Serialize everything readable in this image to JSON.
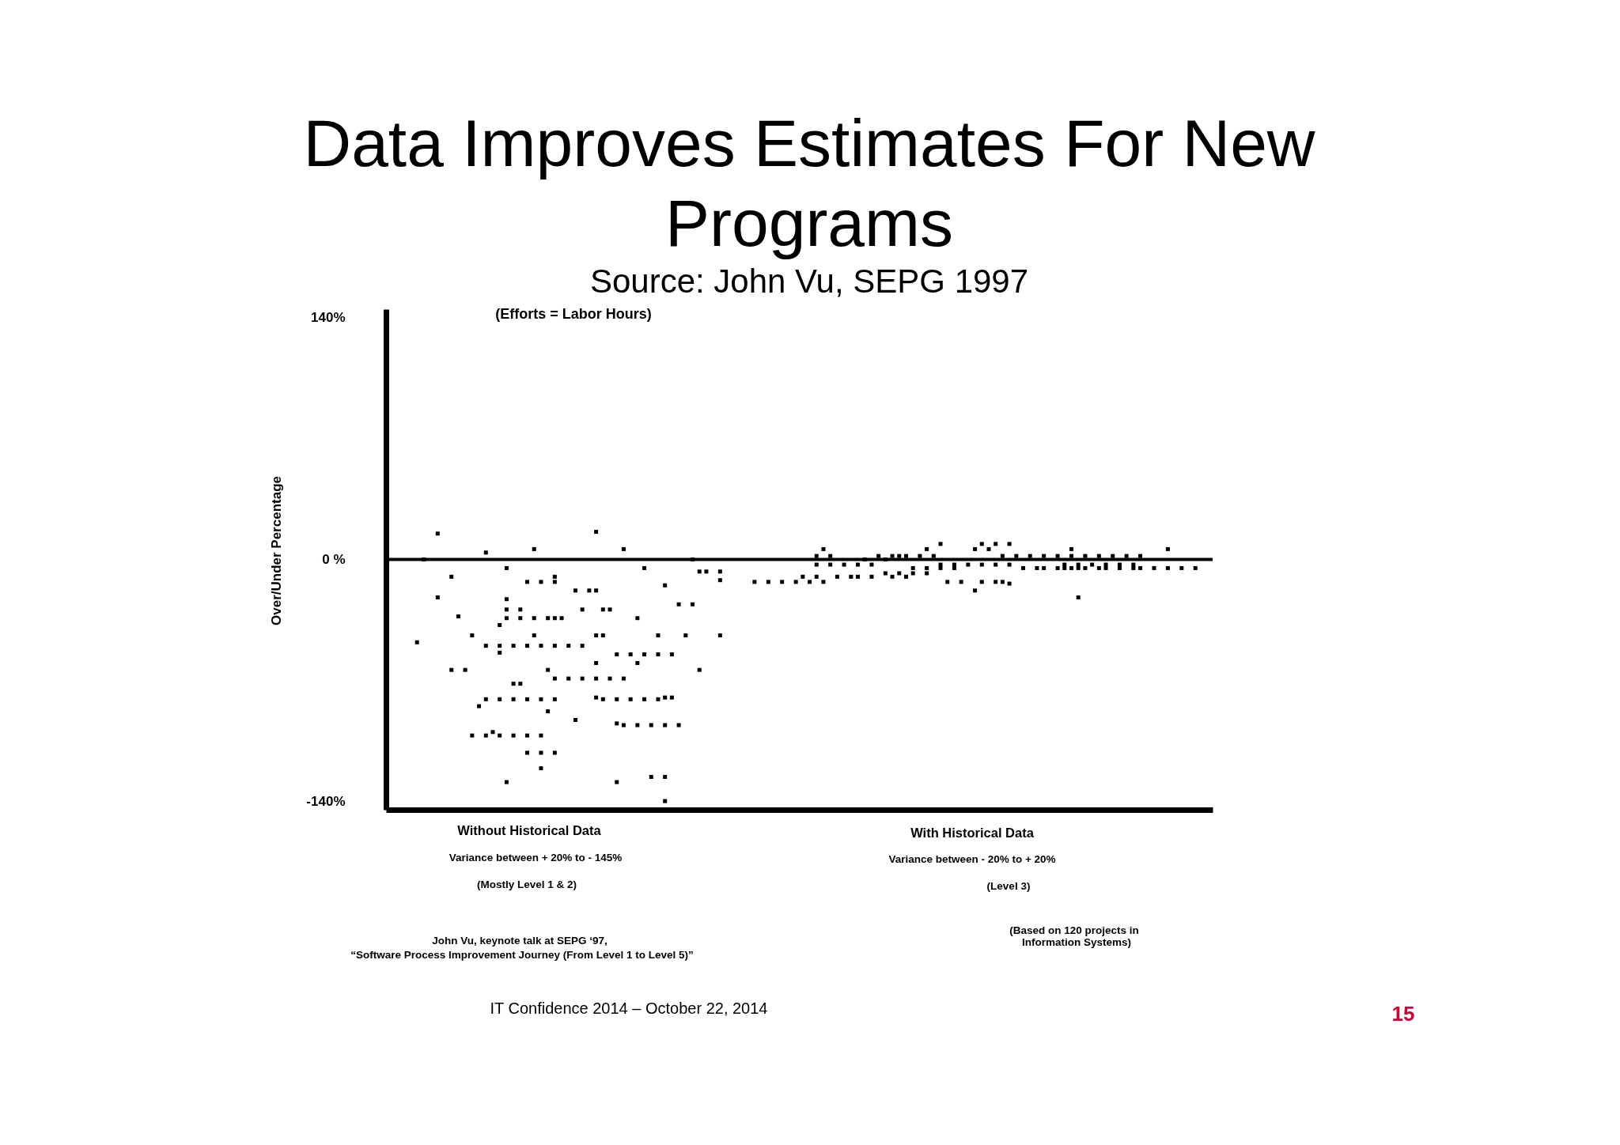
{
  "chart_data": {
    "type": "scatter",
    "title": "Data Improves Estimates For New Programs",
    "subtitle": "Source: John Vu, SEPG 1997",
    "ylabel": "Over/Under Percentage",
    "annotations": [
      "(Efforts = Labor Hours)",
      "Without Historical Data",
      "Variance between + 20% to - 145%",
      "(Mostly Level 1 & 2)",
      "With Historical Data",
      "Variance between - 20% to + 20%",
      "(Level 3)",
      "John Vu, keynote talk at SEPG ‘97,",
      "“Software Process Improvement Journey (From Level 1 to Level 5)”",
      "(Based on 120 projects in",
      "Information Systems)",
      "IT Confidence 2014 – October 22, 2014",
      "15"
    ],
    "categories": [
      null,
      null,
      null,
      null,
      null,
      null,
      null,
      null,
      null,
      null,
      null,
      null,
      null,
      null,
      null,
      null,
      null,
      null,
      null,
      null,
      null,
      null,
      null,
      null,
      null,
      null,
      null,
      null,
      null,
      null,
      null,
      null,
      null,
      null,
      null,
      null,
      null,
      null,
      null,
      null,
      null,
      null,
      null,
      null,
      null,
      null,
      null,
      null,
      null,
      null,
      null,
      null,
      null,
      null,
      null,
      null,
      null,
      null,
      null,
      null,
      null,
      null,
      null,
      null,
      null,
      null,
      null,
      null,
      null,
      null,
      null,
      null,
      null,
      null,
      null,
      null,
      null,
      null,
      null,
      null,
      null,
      null,
      null,
      null,
      null,
      null,
      null,
      null,
      null,
      null,
      null,
      null,
      null,
      null,
      null,
      null,
      null,
      null,
      null,
      null,
      null,
      null,
      null,
      null,
      null,
      null,
      null,
      null,
      null,
      null,
      null,
      null,
      null,
      null,
      null,
      null,
      null,
      null,
      null,
      null
    ],
    "series": [
      {
        "color": "#000000",
        "values": [
          null,
          null,
          null,
          null,
          -48,
          0,
          null,
          15,
          null,
          -10,
          -33,
          -64,
          -44,
          -85,
          4,
          -100,
          -38,
          -5,
          -50,
          -29,
          -13,
          6,
          -13,
          -34,
          -10,
          -34,
          -50,
          -18,
          -29,
          -18,
          16,
          -29,
          -29,
          -55,
          6,
          -55,
          -34,
          -5,
          -96,
          -44,
          -15,
          -55,
          -26,
          -44,
          0,
          -7,
          -7,
          null,
          -7,
          null,
          null,
          null,
          null,
          -13,
          null,
          -13,
          null,
          -13,
          null,
          -13,
          -10,
          -13,
          2,
          6,
          2,
          -10,
          -3,
          -10,
          -3,
          0,
          -3,
          2,
          0,
          2,
          2,
          2,
          -5,
          2,
          6,
          2,
          9,
          -13,
          -3,
          -13,
          -3,
          6,
          9,
          6,
          9,
          2,
          9,
          2,
          -5,
          2,
          -5,
          2,
          null,
          2,
          -3,
          6,
          -3,
          2,
          -3,
          2,
          -3,
          2,
          -3,
          2,
          -3,
          2,
          null,
          -5,
          null,
          6,
          null,
          -5,
          null,
          -5,
          null,
          null
        ]
      },
      {
        "color": "#000000",
        "values": [
          null,
          null,
          null,
          null,
          null,
          null,
          null,
          -22,
          null,
          -64,
          null,
          null,
          -102,
          null,
          -50,
          null,
          -50,
          -23,
          -72,
          -34,
          -50,
          -34,
          -50,
          -64,
          -13,
          null,
          -69,
          -93,
          -50,
          null,
          -18,
          -44,
          -69,
          -81,
          -69,
          -81,
          -60,
          -55,
          -126,
          -55,
          -80,
          -80,
          -96,
          null,
          -26,
          -64,
          null,
          null,
          -12,
          null,
          null,
          null,
          null,
          null,
          null,
          null,
          null,
          null,
          null,
          null,
          null,
          null,
          -3,
          -13,
          -3,
          null,
          null,
          null,
          -10,
          null,
          -10,
          null,
          -8,
          -10,
          -8,
          -10,
          -8,
          null,
          -5,
          null,
          -3,
          null,
          -5,
          null,
          null,
          -18,
          -3,
          null,
          -3,
          -13,
          -3,
          null,
          null,
          null,
          null,
          -5,
          null,
          -5,
          -5,
          2,
          -5,
          -5,
          null,
          -5,
          -5,
          null,
          -5,
          null,
          -5,
          -5,
          null,
          null,
          null,
          -5,
          null,
          null,
          null,
          null,
          null,
          null
        ]
      },
      {
        "color": "#000000",
        "values": [
          null,
          null,
          null,
          null,
          null,
          null,
          null,
          null,
          null,
          null,
          null,
          null,
          null,
          null,
          -81,
          null,
          -54,
          -29,
          -81,
          -72,
          -81,
          -44,
          -81,
          -88,
          -34,
          null,
          null,
          null,
          -69,
          null,
          -44,
          -81,
          null,
          -95,
          -96,
          null,
          -96,
          -81,
          null,
          -81,
          -96,
          null,
          null,
          null,
          null,
          null,
          null,
          null,
          -44,
          null,
          null,
          null,
          null,
          null,
          null,
          null,
          null,
          null,
          null,
          null,
          null,
          null,
          -10,
          null,
          null,
          null,
          null,
          null,
          null,
          null,
          null,
          null,
          null,
          null,
          null,
          null,
          null,
          null,
          -8,
          null,
          -5,
          null,
          null,
          null,
          null,
          null,
          -13,
          null,
          -13,
          null,
          -14,
          null,
          null,
          null,
          null,
          null,
          null,
          null,
          null,
          -5,
          -22,
          null,
          null,
          null,
          null,
          null,
          null,
          null,
          null,
          null,
          null,
          null,
          null,
          null,
          null,
          null,
          null,
          null,
          null,
          null
        ]
      },
      {
        "color": "#000000",
        "values": [
          null,
          null,
          null,
          null,
          null,
          null,
          null,
          null,
          null,
          null,
          null,
          null,
          null,
          null,
          -102,
          null,
          -81,
          -34,
          -102,
          null,
          -102,
          null,
          -102,
          null,
          -50,
          null,
          null,
          null,
          null,
          null,
          -60,
          null,
          null,
          -129,
          null,
          null,
          null,
          null,
          null,
          null,
          -126,
          null,
          null,
          null,
          null,
          null,
          null,
          null,
          null,
          null,
          null,
          null,
          null,
          null,
          null,
          null,
          null,
          null,
          null,
          null,
          null,
          null,
          null,
          null,
          null,
          null,
          null,
          null,
          null,
          null,
          null,
          null,
          null,
          null,
          null,
          null,
          null,
          null,
          null,
          null,
          null,
          null,
          null,
          null,
          null,
          null,
          null,
          null,
          null,
          null,
          null,
          null,
          null,
          null,
          null,
          null,
          null,
          null,
          null,
          null,
          null,
          null,
          null,
          null,
          null,
          null,
          null,
          null,
          null,
          null,
          null,
          null,
          null,
          null,
          null,
          null,
          null,
          null,
          null,
          null
        ]
      },
      {
        "color": "#000000",
        "values": [
          null,
          null,
          null,
          null,
          null,
          null,
          null,
          null,
          null,
          null,
          null,
          null,
          null,
          null,
          null,
          null,
          -102,
          -129,
          null,
          null,
          -112,
          null,
          -112,
          null,
          -69,
          null,
          null,
          null,
          null,
          null,
          -69,
          null,
          null,
          null,
          null,
          null,
          null,
          null,
          null,
          null,
          -140,
          null,
          null,
          null,
          null,
          null,
          null,
          null,
          null,
          null,
          null,
          null,
          null,
          null,
          null,
          null,
          null,
          null,
          null,
          null,
          null,
          null,
          null,
          null,
          null,
          null,
          null,
          null,
          null,
          null,
          null,
          null,
          null,
          null,
          null,
          null,
          null,
          null,
          null,
          null,
          null,
          null,
          null,
          null,
          null,
          null,
          null,
          null,
          null,
          null,
          null,
          null,
          null,
          null,
          null,
          null,
          null,
          null,
          null,
          null,
          null,
          null,
          null,
          null,
          null,
          null,
          null,
          null,
          null,
          null,
          null,
          null,
          null,
          null,
          null,
          null,
          null,
          null,
          null,
          null
        ]
      },
      {
        "color": "#000000",
        "values": [
          null,
          null,
          null,
          null,
          null,
          null,
          null,
          null,
          null,
          null,
          null,
          null,
          null,
          null,
          null,
          null,
          null,
          null,
          null,
          null,
          null,
          null,
          -121,
          null,
          -81,
          null,
          null,
          null,
          null,
          null,
          -80,
          null,
          null,
          null,
          null,
          null,
          null,
          null,
          null,
          null,
          null,
          null,
          null,
          null,
          null,
          null,
          null,
          null,
          null,
          null,
          null,
          null,
          null,
          null,
          null,
          null,
          null,
          null,
          null,
          null,
          null,
          null,
          null,
          null,
          null,
          null,
          null,
          null,
          null,
          null,
          null,
          null,
          null,
          null,
          null,
          null,
          null,
          null,
          null,
          null,
          null,
          null,
          null,
          null,
          null,
          null,
          null,
          null,
          null,
          null,
          null,
          null,
          null,
          null,
          null,
          null,
          null,
          null,
          null,
          null,
          null,
          null,
          null,
          null,
          null,
          null,
          null,
          null,
          null,
          null,
          null,
          null,
          null,
          null,
          null,
          null,
          null,
          null,
          null,
          null
        ]
      },
      {
        "color": "#000000",
        "values": [
          null,
          null,
          null,
          null,
          null,
          null,
          null,
          null,
          null,
          null,
          null,
          null,
          null,
          null,
          null,
          null,
          null,
          null,
          null,
          null,
          null,
          null,
          null,
          null,
          -112,
          null,
          null,
          null,
          null,
          null,
          null,
          null,
          null,
          null,
          null,
          null,
          null,
          null,
          null,
          null,
          null,
          null,
          null,
          null,
          null,
          null,
          null,
          null,
          null,
          null,
          null,
          null,
          null,
          null,
          null,
          null,
          null,
          null,
          null,
          null,
          null,
          null,
          null,
          null,
          null,
          null,
          null,
          null,
          null,
          null,
          null,
          null,
          null,
          null,
          null,
          null,
          null,
          null,
          null,
          null,
          null,
          null,
          null,
          null,
          null,
          null,
          null,
          null,
          null,
          null,
          null,
          null,
          null,
          null,
          null,
          null,
          null,
          null,
          null,
          null,
          null,
          null,
          null,
          null,
          null,
          null,
          null,
          null,
          null,
          null,
          null,
          null,
          null,
          null,
          null,
          null,
          null,
          null,
          null,
          null
        ]
      }
    ],
    "ylim": [
      -145,
      145
    ],
    "yticks": [
      {
        "value": -140,
        "label": "-140%"
      },
      {
        "value": 0,
        "label": "0 %"
      },
      {
        "value": 140,
        "label": "140%"
      }
    ],
    "ref_lines": [
      {
        "axis": "y",
        "value": 0
      }
    ],
    "marker": "square",
    "tick_labels": "y"
  }
}
